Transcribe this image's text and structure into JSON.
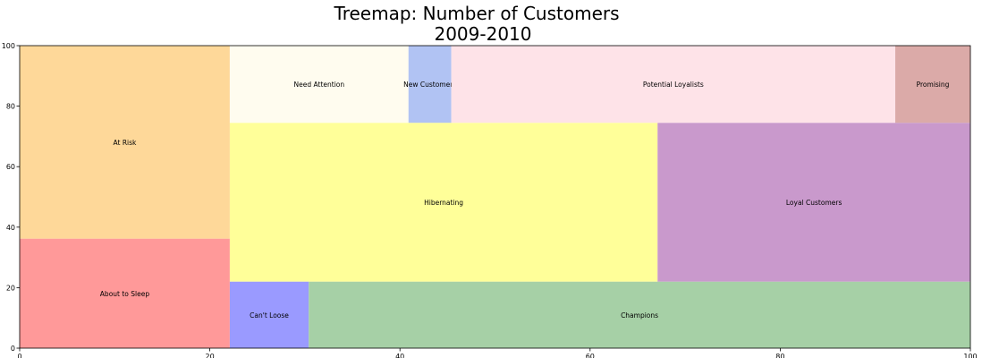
{
  "chart_data": {
    "type": "treemap",
    "title_line1": "Treemap: Number of Customers",
    "title_line2": "2009-2010",
    "xlim": [
      0,
      100
    ],
    "ylim": [
      0,
      100
    ],
    "xticks": [
      "0",
      "20",
      "40",
      "60",
      "80",
      "100"
    ],
    "yticks": [
      "0",
      "20",
      "40",
      "60",
      "80",
      "100"
    ],
    "grid": false,
    "cells": [
      {
        "label": "About to Sleep",
        "x": 0,
        "y": 0,
        "w": 22.1,
        "h": 36.2,
        "color": "#ff9999"
      },
      {
        "label": "At Risk",
        "x": 0,
        "y": 36.2,
        "w": 22.1,
        "h": 63.8,
        "color": "#fed899"
      },
      {
        "label": "Can't Loose",
        "x": 22.1,
        "y": 0,
        "w": 8.3,
        "h": 22.0,
        "color": "#9a9aff"
      },
      {
        "label": "Champions",
        "x": 30.4,
        "y": 0,
        "w": 69.6,
        "h": 22.0,
        "color": "#a6d0a6"
      },
      {
        "label": "Hibernating",
        "x": 22.1,
        "y": 22.0,
        "w": 45.0,
        "h": 52.5,
        "color": "#ffff99"
      },
      {
        "label": "Loyal Customers",
        "x": 67.1,
        "y": 22.0,
        "w": 32.9,
        "h": 52.5,
        "color": "#c999cc"
      },
      {
        "label": "Need Attention",
        "x": 22.1,
        "y": 74.5,
        "w": 18.8,
        "h": 25.5,
        "color": "#fffcef"
      },
      {
        "label": "New Customers",
        "x": 40.9,
        "y": 74.5,
        "w": 4.5,
        "h": 25.5,
        "color": "#b1c3f3"
      },
      {
        "label": "Potential Loyalists",
        "x": 45.4,
        "y": 74.5,
        "w": 46.7,
        "h": 25.5,
        "color": "#fee3e8"
      },
      {
        "label": "Promising",
        "x": 92.1,
        "y": 74.5,
        "w": 7.9,
        "h": 25.5,
        "color": "#dbaaa8"
      }
    ]
  }
}
